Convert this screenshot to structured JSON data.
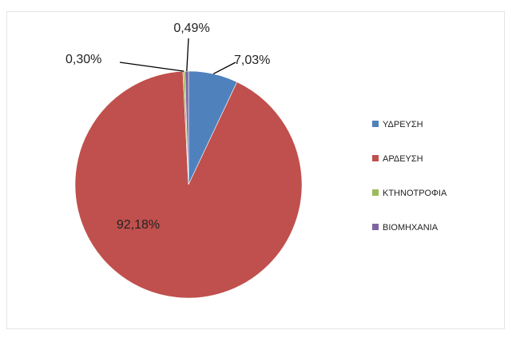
{
  "chart_data": {
    "type": "pie",
    "categories": [
      "ΥΔΡΕΥΣΗ",
      "ΑΡΔΕΥΣΗ",
      "ΚΤΗΝΟΤΡΟΦΙΑ",
      "ΒΙΟΜΗΧΑΝΙΑ"
    ],
    "values": [
      7.03,
      92.18,
      0.3,
      0.49
    ],
    "data_labels": [
      "7,03%",
      "92,18%",
      "0,30%",
      "0,49%"
    ],
    "colors": [
      "#4f81bd",
      "#c0504d",
      "#9bbb59",
      "#8064a2"
    ],
    "title": "",
    "legend_position": "right",
    "start_angle_deg": 0,
    "direction": "clockwise"
  }
}
